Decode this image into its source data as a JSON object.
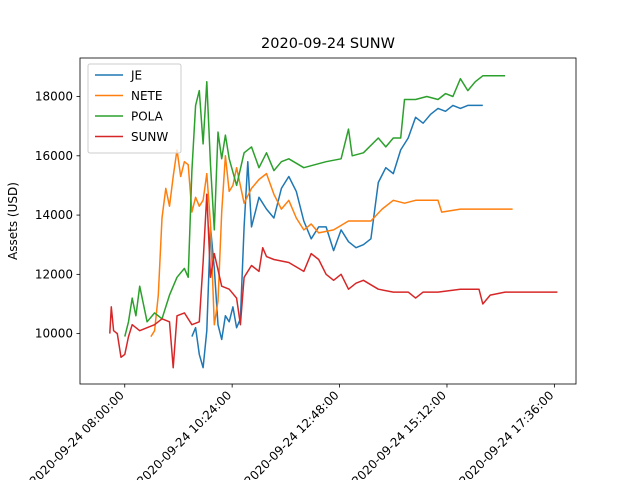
{
  "chart_data": {
    "type": "line",
    "title": "2020-09-24 SUNW",
    "xlabel": "",
    "ylabel": "Assets (USD)",
    "xlim": [
      "2020-09-24 07:00",
      "2020-09-24 18:05"
    ],
    "ylim": [
      8300,
      19300
    ],
    "x_ticks": [
      "2020-09-24 08:00:00",
      "2020-09-24 10:24:00",
      "2020-09-24 12:48:00",
      "2020-09-24 15:12:00",
      "2020-09-24 17:36:00"
    ],
    "y_ticks": [
      10000,
      12000,
      14000,
      16000,
      18000
    ],
    "legend_position": "top-left",
    "grid": false,
    "series": [
      {
        "name": "JE",
        "color": "#1f77b4",
        "points": [
          [
            "2020-09-24 09:30",
            9900
          ],
          [
            "2020-09-24 09:35",
            10200
          ],
          [
            "2020-09-24 09:40",
            9300
          ],
          [
            "2020-09-24 09:45",
            8850
          ],
          [
            "2020-09-24 09:50",
            10100
          ],
          [
            "2020-09-24 09:55",
            13600
          ],
          [
            "2020-09-24 10:00",
            12200
          ],
          [
            "2020-09-24 10:05",
            10300
          ],
          [
            "2020-09-24 10:10",
            9800
          ],
          [
            "2020-09-24 10:15",
            10600
          ],
          [
            "2020-09-24 10:20",
            10400
          ],
          [
            "2020-09-24 10:25",
            10900
          ],
          [
            "2020-09-24 10:30",
            10200
          ],
          [
            "2020-09-24 10:35",
            10500
          ],
          [
            "2020-09-24 10:40",
            13600
          ],
          [
            "2020-09-24 10:45",
            15800
          ],
          [
            "2020-09-24 10:50",
            13600
          ],
          [
            "2020-09-24 10:55",
            14100
          ],
          [
            "2020-09-24 11:00",
            14600
          ],
          [
            "2020-09-24 11:10",
            14200
          ],
          [
            "2020-09-24 11:20",
            13900
          ],
          [
            "2020-09-24 11:30",
            14900
          ],
          [
            "2020-09-24 11:40",
            15300
          ],
          [
            "2020-09-24 11:50",
            14800
          ],
          [
            "2020-09-24 12:00",
            13800
          ],
          [
            "2020-09-24 12:10",
            13200
          ],
          [
            "2020-09-24 12:20",
            13600
          ],
          [
            "2020-09-24 12:30",
            13600
          ],
          [
            "2020-09-24 12:40",
            12800
          ],
          [
            "2020-09-24 12:50",
            13500
          ],
          [
            "2020-09-24 13:00",
            13100
          ],
          [
            "2020-09-24 13:10",
            12900
          ],
          [
            "2020-09-24 13:20",
            13000
          ],
          [
            "2020-09-24 13:30",
            13200
          ],
          [
            "2020-09-24 13:40",
            15100
          ],
          [
            "2020-09-24 13:50",
            15600
          ],
          [
            "2020-09-24 14:00",
            15400
          ],
          [
            "2020-09-24 14:10",
            16200
          ],
          [
            "2020-09-24 14:20",
            16600
          ],
          [
            "2020-09-24 14:30",
            17300
          ],
          [
            "2020-09-24 14:40",
            17100
          ],
          [
            "2020-09-24 14:50",
            17400
          ],
          [
            "2020-09-24 15:00",
            17600
          ],
          [
            "2020-09-24 15:10",
            17500
          ],
          [
            "2020-09-24 15:20",
            17700
          ],
          [
            "2020-09-24 15:30",
            17600
          ],
          [
            "2020-09-24 15:40",
            17700
          ],
          [
            "2020-09-24 16:00",
            17700
          ]
        ]
      },
      {
        "name": "NETE",
        "color": "#ff7f0e",
        "points": [
          [
            "2020-09-24 08:35",
            9900
          ],
          [
            "2020-09-24 08:40",
            10100
          ],
          [
            "2020-09-24 08:45",
            11300
          ],
          [
            "2020-09-24 08:50",
            13900
          ],
          [
            "2020-09-24 08:55",
            14900
          ],
          [
            "2020-09-24 09:00",
            14300
          ],
          [
            "2020-09-24 09:05",
            15300
          ],
          [
            "2020-09-24 09:10",
            16200
          ],
          [
            "2020-09-24 09:15",
            15300
          ],
          [
            "2020-09-24 09:20",
            15800
          ],
          [
            "2020-09-24 09:25",
            15700
          ],
          [
            "2020-09-24 09:30",
            14100
          ],
          [
            "2020-09-24 09:35",
            14600
          ],
          [
            "2020-09-24 09:40",
            14300
          ],
          [
            "2020-09-24 09:45",
            14500
          ],
          [
            "2020-09-24 09:50",
            15400
          ],
          [
            "2020-09-24 09:55",
            13700
          ],
          [
            "2020-09-24 10:00",
            10300
          ],
          [
            "2020-09-24 10:05",
            11100
          ],
          [
            "2020-09-24 10:10",
            14100
          ],
          [
            "2020-09-24 10:15",
            16000
          ],
          [
            "2020-09-24 10:20",
            14800
          ],
          [
            "2020-09-24 10:25",
            15000
          ],
          [
            "2020-09-24 10:30",
            15600
          ],
          [
            "2020-09-24 10:40",
            14400
          ],
          [
            "2020-09-24 10:50",
            14900
          ],
          [
            "2020-09-24 11:00",
            15200
          ],
          [
            "2020-09-24 11:10",
            15400
          ],
          [
            "2020-09-24 11:20",
            14700
          ],
          [
            "2020-09-24 11:30",
            14200
          ],
          [
            "2020-09-24 11:40",
            14500
          ],
          [
            "2020-09-24 11:50",
            13900
          ],
          [
            "2020-09-24 12:00",
            13500
          ],
          [
            "2020-09-24 12:10",
            13700
          ],
          [
            "2020-09-24 12:20",
            13400
          ],
          [
            "2020-09-24 12:40",
            13500
          ],
          [
            "2020-09-24 13:00",
            13800
          ],
          [
            "2020-09-24 13:30",
            13800
          ],
          [
            "2020-09-24 13:45",
            14200
          ],
          [
            "2020-09-24 14:00",
            14500
          ],
          [
            "2020-09-24 14:15",
            14400
          ],
          [
            "2020-09-24 14:30",
            14500
          ],
          [
            "2020-09-24 15:00",
            14500
          ],
          [
            "2020-09-24 15:05",
            14100
          ],
          [
            "2020-09-24 15:30",
            14200
          ],
          [
            "2020-09-24 16:00",
            14200
          ],
          [
            "2020-09-24 16:40",
            14200
          ]
        ]
      },
      {
        "name": "POLA",
        "color": "#2ca02c",
        "points": [
          [
            "2020-09-24 08:00",
            9900
          ],
          [
            "2020-09-24 08:05",
            10400
          ],
          [
            "2020-09-24 08:10",
            11200
          ],
          [
            "2020-09-24 08:15",
            10600
          ],
          [
            "2020-09-24 08:20",
            11600
          ],
          [
            "2020-09-24 08:25",
            11000
          ],
          [
            "2020-09-24 08:30",
            10400
          ],
          [
            "2020-09-24 08:40",
            10700
          ],
          [
            "2020-09-24 08:50",
            10500
          ],
          [
            "2020-09-24 09:00",
            11300
          ],
          [
            "2020-09-24 09:10",
            11900
          ],
          [
            "2020-09-24 09:20",
            12200
          ],
          [
            "2020-09-24 09:25",
            11900
          ],
          [
            "2020-09-24 09:30",
            15500
          ],
          [
            "2020-09-24 09:35",
            17700
          ],
          [
            "2020-09-24 09:40",
            18200
          ],
          [
            "2020-09-24 09:45",
            16400
          ],
          [
            "2020-09-24 09:50",
            18500
          ],
          [
            "2020-09-24 09:55",
            15700
          ],
          [
            "2020-09-24 10:00",
            13500
          ],
          [
            "2020-09-24 10:05",
            16800
          ],
          [
            "2020-09-24 10:10",
            15900
          ],
          [
            "2020-09-24 10:15",
            16700
          ],
          [
            "2020-09-24 10:20",
            15900
          ],
          [
            "2020-09-24 10:30",
            15000
          ],
          [
            "2020-09-24 10:40",
            16100
          ],
          [
            "2020-09-24 10:50",
            16300
          ],
          [
            "2020-09-24 11:00",
            15600
          ],
          [
            "2020-09-24 11:10",
            16100
          ],
          [
            "2020-09-24 11:20",
            15500
          ],
          [
            "2020-09-24 11:30",
            15800
          ],
          [
            "2020-09-24 11:40",
            15900
          ],
          [
            "2020-09-24 12:00",
            15600
          ],
          [
            "2020-09-24 12:15",
            15700
          ],
          [
            "2020-09-24 12:30",
            15800
          ],
          [
            "2020-09-24 12:50",
            15900
          ],
          [
            "2020-09-24 13:00",
            16900
          ],
          [
            "2020-09-24 13:05",
            16000
          ],
          [
            "2020-09-24 13:20",
            16100
          ],
          [
            "2020-09-24 13:40",
            16600
          ],
          [
            "2020-09-24 13:50",
            16300
          ],
          [
            "2020-09-24 14:00",
            16600
          ],
          [
            "2020-09-24 14:10",
            16600
          ],
          [
            "2020-09-24 14:15",
            17900
          ],
          [
            "2020-09-24 14:30",
            17900
          ],
          [
            "2020-09-24 14:45",
            18000
          ],
          [
            "2020-09-24 15:00",
            17900
          ],
          [
            "2020-09-24 15:10",
            18100
          ],
          [
            "2020-09-24 15:20",
            18000
          ],
          [
            "2020-09-24 15:30",
            18600
          ],
          [
            "2020-09-24 15:40",
            18200
          ],
          [
            "2020-09-24 15:50",
            18500
          ],
          [
            "2020-09-24 16:00",
            18700
          ],
          [
            "2020-09-24 16:30",
            18700
          ]
        ]
      },
      {
        "name": "SUNW",
        "color": "#d62728",
        "points": [
          [
            "2020-09-24 07:40",
            10000
          ],
          [
            "2020-09-24 07:42",
            10900
          ],
          [
            "2020-09-24 07:45",
            10100
          ],
          [
            "2020-09-24 07:50",
            10000
          ],
          [
            "2020-09-24 07:55",
            9200
          ],
          [
            "2020-09-24 08:00",
            9300
          ],
          [
            "2020-09-24 08:05",
            9900
          ],
          [
            "2020-09-24 08:10",
            10300
          ],
          [
            "2020-09-24 08:20",
            10100
          ],
          [
            "2020-09-24 08:30",
            10200
          ],
          [
            "2020-09-24 08:40",
            10300
          ],
          [
            "2020-09-24 08:50",
            10500
          ],
          [
            "2020-09-24 09:00",
            10400
          ],
          [
            "2020-09-24 09:05",
            8850
          ],
          [
            "2020-09-24 09:10",
            10600
          ],
          [
            "2020-09-24 09:20",
            10700
          ],
          [
            "2020-09-24 09:30",
            10300
          ],
          [
            "2020-09-24 09:40",
            10400
          ],
          [
            "2020-09-24 09:45",
            12400
          ],
          [
            "2020-09-24 09:50",
            14700
          ],
          [
            "2020-09-24 09:55",
            11900
          ],
          [
            "2020-09-24 10:00",
            12700
          ],
          [
            "2020-09-24 10:10",
            11600
          ],
          [
            "2020-09-24 10:20",
            11500
          ],
          [
            "2020-09-24 10:30",
            11200
          ],
          [
            "2020-09-24 10:35",
            10300
          ],
          [
            "2020-09-24 10:40",
            11900
          ],
          [
            "2020-09-24 10:50",
            12300
          ],
          [
            "2020-09-24 11:00",
            12100
          ],
          [
            "2020-09-24 11:05",
            12900
          ],
          [
            "2020-09-24 11:10",
            12600
          ],
          [
            "2020-09-24 11:20",
            12500
          ],
          [
            "2020-09-24 11:40",
            12400
          ],
          [
            "2020-09-24 12:00",
            12100
          ],
          [
            "2020-09-24 12:10",
            12700
          ],
          [
            "2020-09-24 12:20",
            12500
          ],
          [
            "2020-09-24 12:30",
            12000
          ],
          [
            "2020-09-24 12:40",
            11800
          ],
          [
            "2020-09-24 12:50",
            12000
          ],
          [
            "2020-09-24 13:00",
            11500
          ],
          [
            "2020-09-24 13:10",
            11700
          ],
          [
            "2020-09-24 13:20",
            11800
          ],
          [
            "2020-09-24 13:40",
            11500
          ],
          [
            "2020-09-24 14:00",
            11400
          ],
          [
            "2020-09-24 14:20",
            11400
          ],
          [
            "2020-09-24 14:30",
            11200
          ],
          [
            "2020-09-24 14:40",
            11400
          ],
          [
            "2020-09-24 15:00",
            11400
          ],
          [
            "2020-09-24 15:30",
            11500
          ],
          [
            "2020-09-24 15:55",
            11500
          ],
          [
            "2020-09-24 16:00",
            11000
          ],
          [
            "2020-09-24 16:10",
            11300
          ],
          [
            "2020-09-24 16:30",
            11400
          ],
          [
            "2020-09-24 17:40",
            11400
          ]
        ]
      }
    ]
  }
}
